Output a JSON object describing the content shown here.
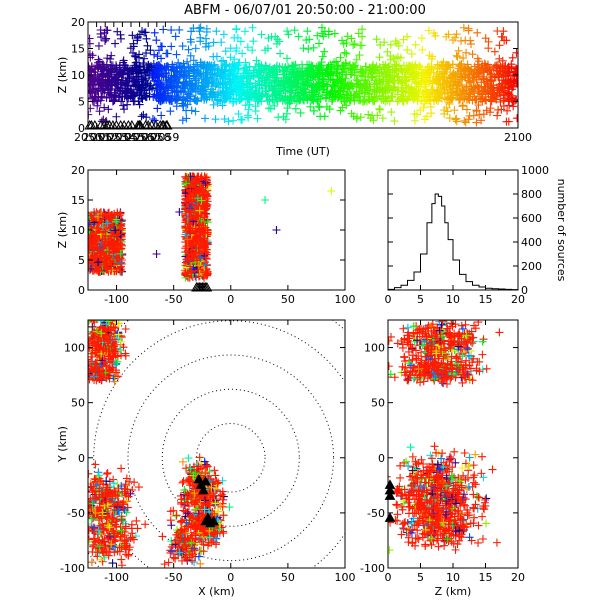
{
  "title": "ABFM - 06/07/01 20:50:00 - 21:00:00",
  "chart_data": [
    {
      "id": "time_height",
      "type": "scatter",
      "marker": "+",
      "xlabel": "Time (UT)",
      "ylabel": "Z (km)",
      "xlim": [
        2050,
        2100
      ],
      "ylim": [
        0,
        20
      ],
      "xticks": [
        2050,
        2051,
        2052,
        2053,
        2054,
        2055,
        2056,
        2057,
        2058,
        2059,
        2100
      ],
      "yticks": [
        0,
        5,
        10,
        15,
        20
      ],
      "color_encoding": "time (purple to red rainbow)",
      "z_core_range_km": [
        5,
        12
      ],
      "station_markers": "triangles at z=0",
      "station_times": [
        2050.2,
        2050.4,
        2050.8,
        2051.5,
        2051.9,
        2052.2,
        2052.5,
        2052.9,
        2053.3,
        2053.8,
        2054.2,
        2054.7,
        2055.1,
        2055.8,
        2055.95,
        2056.0,
        2056.1,
        2056.7,
        2057.0,
        2057.4,
        2057.9,
        2058.4,
        2058.65,
        2058.8,
        2059.1,
        2059.2
      ]
    },
    {
      "id": "x_height",
      "type": "scatter",
      "marker": "+",
      "xlabel": "",
      "ylabel": "Z (km)",
      "xlim": [
        -125,
        100
      ],
      "ylim": [
        0,
        20
      ],
      "xticks": [
        -100,
        -50,
        0,
        50,
        100
      ],
      "yticks": [
        0,
        5,
        10,
        15,
        20
      ],
      "clusters": [
        {
          "x_range": [
            -125,
            -95
          ],
          "z_range": [
            3,
            13
          ]
        },
        {
          "x_range": [
            -40,
            -20
          ],
          "z_range": [
            2,
            19
          ]
        }
      ],
      "outliers": [
        [
          88,
          16.5
        ],
        [
          30,
          15
        ],
        [
          40,
          10
        ],
        [
          -65,
          6
        ],
        [
          -45,
          13
        ]
      ],
      "station_markers": "triangles at z=0, x between -30 and -20"
    },
    {
      "id": "height_histogram",
      "type": "step",
      "xlabel": "",
      "ylabel": "number of sources",
      "xlim": [
        0,
        20
      ],
      "ylim": [
        0,
        1000
      ],
      "xticks": [
        0,
        5,
        10,
        15,
        20
      ],
      "yticks": [
        0,
        200,
        400,
        600,
        800,
        1000
      ],
      "bin_centers": [
        0.5,
        1.5,
        2.5,
        3.5,
        4.5,
        5.5,
        6.5,
        7,
        7.5,
        8,
        8.5,
        9,
        9.5,
        10.5,
        11.5,
        12.5,
        13.5,
        14.5,
        15.5,
        16.5,
        17.5,
        18.5,
        19.5
      ],
      "counts": [
        5,
        20,
        40,
        80,
        150,
        300,
        560,
        720,
        800,
        780,
        700,
        560,
        420,
        250,
        130,
        70,
        40,
        25,
        15,
        10,
        8,
        5,
        3
      ]
    },
    {
      "id": "plan_view",
      "type": "scatter",
      "marker": "+",
      "xlabel": "X (km)",
      "ylabel": "Y (km)",
      "xlim": [
        -125,
        100
      ],
      "ylim": [
        -100,
        125
      ],
      "xticks": [
        -100,
        -50,
        0,
        50,
        100
      ],
      "yticks": [
        -100,
        -50,
        0,
        50,
        100
      ],
      "range_rings_km": [
        30,
        60,
        90,
        120,
        150
      ],
      "ring_center": [
        0,
        0
      ],
      "station_markers": [
        [
          -28,
          -20
        ],
        [
          -26,
          -25
        ],
        [
          -22,
          -22
        ],
        [
          -24,
          -30
        ],
        [
          -20,
          -55
        ],
        [
          -15,
          -58
        ],
        [
          -18,
          -60
        ],
        [
          -22,
          -58
        ]
      ]
    },
    {
      "id": "z_y",
      "type": "scatter",
      "marker": "+",
      "xlabel": "Z (km)",
      "ylabel": "",
      "xlim": [
        0,
        20
      ],
      "ylim": [
        -100,
        125
      ],
      "xticks": [
        0,
        5,
        10,
        15,
        20
      ],
      "yticks": [
        -100,
        -50,
        0,
        50,
        100
      ]
    }
  ]
}
